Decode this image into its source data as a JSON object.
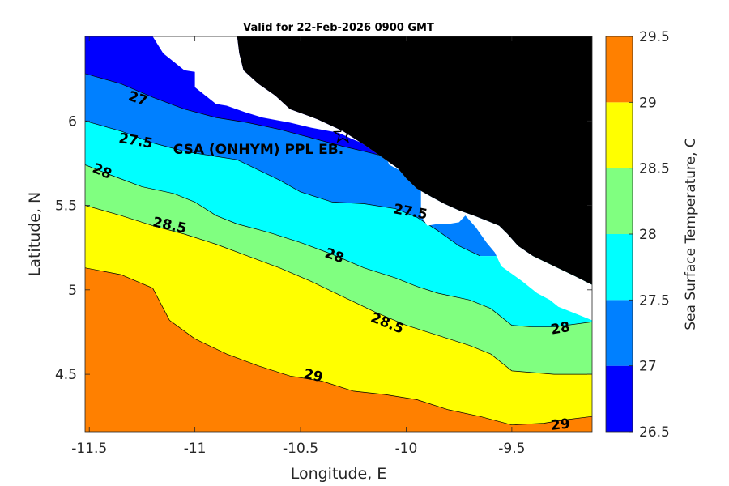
{
  "chart_data": {
    "type": "contourf",
    "title": "Valid for 22-Feb-2026 0900 GMT",
    "xlabel": "Longitude, E",
    "ylabel": "Latitude, N",
    "xlim": [
      -11.52,
      -9.12
    ],
    "ylim": [
      4.16,
      6.5
    ],
    "xticks": [
      -11.5,
      -11,
      -10.5,
      -10,
      -9.5
    ],
    "xtick_labels": [
      "-11.5",
      "-11",
      "-10.5",
      "-10",
      "-9.5"
    ],
    "yticks": [
      4.5,
      5,
      5.5,
      6
    ],
    "ytick_labels": [
      "4.5",
      "5",
      "5.5",
      "6"
    ],
    "colorbar": {
      "label": "Sea Surface Temperature, C",
      "levels": [
        26.5,
        27,
        27.5,
        28,
        28.5,
        29,
        29.5
      ],
      "tick_labels": [
        "26.5",
        "27",
        "27.5",
        "28",
        "28.5",
        "29",
        "29.5"
      ],
      "colors": [
        "#0000ff",
        "#0080ff",
        "#00ffff",
        "#80ff80",
        "#ffff00",
        "#ff8000"
      ]
    },
    "land_color": "#000000",
    "mask_color": "#ffffff",
    "station": {
      "name": "CSA (ONHYM) PPL EB.",
      "lon": -10.3,
      "lat": 5.92
    },
    "contour_labels": [
      {
        "text": "27",
        "lon": -11.27,
        "lat": 6.13,
        "angle": 18
      },
      {
        "text": "27.5",
        "lon": -11.28,
        "lat": 5.88,
        "angle": 10
      },
      {
        "text": "27.5",
        "lon": -9.98,
        "lat": 5.46,
        "angle": 10
      },
      {
        "text": "28",
        "lon": -11.44,
        "lat": 5.7,
        "angle": 24
      },
      {
        "text": "28",
        "lon": -10.34,
        "lat": 5.2,
        "angle": 20
      },
      {
        "text": "28",
        "lon": -9.27,
        "lat": 4.77,
        "angle": -10
      },
      {
        "text": "28.5",
        "lon": -11.12,
        "lat": 5.38,
        "angle": 12
      },
      {
        "text": "28.5",
        "lon": -10.09,
        "lat": 4.8,
        "angle": 22
      },
      {
        "text": "29",
        "lon": -10.44,
        "lat": 4.49,
        "angle": 12
      },
      {
        "text": "29",
        "lon": -9.27,
        "lat": 4.2,
        "angle": -6
      }
    ],
    "contours": {
      "c27_0": [
        [
          -11.52,
          6.28
        ],
        [
          -11.35,
          6.22
        ],
        [
          -11.2,
          6.14
        ],
        [
          -11.05,
          6.07
        ],
        [
          -10.9,
          6.02
        ],
        [
          -10.75,
          5.99
        ],
        [
          -10.6,
          5.95
        ],
        [
          -10.45,
          5.9
        ],
        [
          -10.3,
          5.85
        ],
        [
          -10.2,
          5.82
        ],
        [
          -10.1,
          5.79
        ],
        [
          -10.0,
          5.76
        ],
        [
          -9.95,
          5.74
        ]
      ],
      "c27_5": [
        [
          -11.52,
          6.0
        ],
        [
          -11.35,
          5.94
        ],
        [
          -11.2,
          5.87
        ],
        [
          -11.05,
          5.82
        ],
        [
          -10.9,
          5.79
        ],
        [
          -10.8,
          5.77
        ],
        [
          -10.7,
          5.71
        ],
        [
          -10.6,
          5.65
        ],
        [
          -10.5,
          5.58
        ],
        [
          -10.35,
          5.52
        ],
        [
          -10.2,
          5.51
        ],
        [
          -10.05,
          5.48
        ],
        [
          -9.95,
          5.43
        ],
        [
          -9.85,
          5.35
        ],
        [
          -9.75,
          5.26
        ],
        [
          -9.65,
          5.2
        ]
      ],
      "c28_0": [
        [
          -11.52,
          5.74
        ],
        [
          -11.4,
          5.68
        ],
        [
          -11.25,
          5.61
        ],
        [
          -11.1,
          5.57
        ],
        [
          -11.0,
          5.52
        ],
        [
          -10.9,
          5.44
        ],
        [
          -10.8,
          5.39
        ],
        [
          -10.65,
          5.34
        ],
        [
          -10.5,
          5.28
        ],
        [
          -10.35,
          5.21
        ],
        [
          -10.2,
          5.13
        ],
        [
          -10.05,
          5.07
        ],
        [
          -9.95,
          5.02
        ],
        [
          -9.85,
          4.98
        ],
        [
          -9.7,
          4.94
        ],
        [
          -9.6,
          4.89
        ],
        [
          -9.5,
          4.79
        ],
        [
          -9.4,
          4.78
        ],
        [
          -9.3,
          4.78
        ],
        [
          -9.12,
          4.81
        ]
      ],
      "c28_5": [
        [
          -11.52,
          5.5
        ],
        [
          -11.35,
          5.44
        ],
        [
          -11.2,
          5.38
        ],
        [
          -11.05,
          5.33
        ],
        [
          -10.9,
          5.27
        ],
        [
          -10.75,
          5.2
        ],
        [
          -10.6,
          5.13
        ],
        [
          -10.45,
          5.05
        ],
        [
          -10.3,
          4.96
        ],
        [
          -10.15,
          4.87
        ],
        [
          -10.0,
          4.79
        ],
        [
          -9.85,
          4.73
        ],
        [
          -9.7,
          4.67
        ],
        [
          -9.6,
          4.62
        ],
        [
          -9.5,
          4.52
        ],
        [
          -9.4,
          4.51
        ],
        [
          -9.3,
          4.5
        ],
        [
          -9.12,
          4.5
        ]
      ],
      "c29_0": [
        [
          -11.52,
          5.13
        ],
        [
          -11.35,
          5.09
        ],
        [
          -11.2,
          5.01
        ],
        [
          -11.12,
          4.82
        ],
        [
          -11.0,
          4.71
        ],
        [
          -10.85,
          4.62
        ],
        [
          -10.7,
          4.55
        ],
        [
          -10.55,
          4.49
        ],
        [
          -10.4,
          4.46
        ],
        [
          -10.25,
          4.4
        ],
        [
          -10.1,
          4.38
        ],
        [
          -9.95,
          4.35
        ],
        [
          -9.8,
          4.29
        ],
        [
          -9.65,
          4.25
        ],
        [
          -9.5,
          4.2
        ],
        [
          -9.35,
          4.21
        ],
        [
          -9.25,
          4.23
        ],
        [
          -9.12,
          4.25
        ]
      ]
    },
    "land": [
      [
        -10.8,
        6.5
      ],
      [
        -9.12,
        6.5
      ],
      [
        -9.12,
        5.03
      ],
      [
        -9.2,
        5.08
      ],
      [
        -9.3,
        5.14
      ],
      [
        -9.4,
        5.2
      ],
      [
        -9.47,
        5.26
      ],
      [
        -9.52,
        5.33
      ],
      [
        -9.56,
        5.38
      ],
      [
        -9.62,
        5.41
      ],
      [
        -9.68,
        5.44
      ],
      [
        -9.75,
        5.47
      ],
      [
        -9.82,
        5.51
      ],
      [
        -9.88,
        5.55
      ],
      [
        -9.95,
        5.6
      ],
      [
        -10.0,
        5.66
      ],
      [
        -10.04,
        5.72
      ],
      [
        -10.12,
        5.79
      ],
      [
        -10.2,
        5.86
      ],
      [
        -10.3,
        5.94
      ],
      [
        -10.42,
        6.01
      ],
      [
        -10.55,
        6.07
      ],
      [
        -10.62,
        6.15
      ],
      [
        -10.7,
        6.22
      ],
      [
        -10.77,
        6.3
      ],
      [
        -10.79,
        6.4
      ]
    ],
    "nodata_mask": [
      [
        -11.2,
        6.5
      ],
      [
        -10.8,
        6.5
      ],
      [
        -10.79,
        6.4
      ],
      [
        -10.77,
        6.3
      ],
      [
        -10.7,
        6.22
      ],
      [
        -10.62,
        6.15
      ],
      [
        -10.55,
        6.07
      ],
      [
        -10.42,
        6.01
      ],
      [
        -10.3,
        5.94
      ],
      [
        -10.2,
        5.86
      ],
      [
        -10.12,
        5.79
      ],
      [
        -10.04,
        5.72
      ],
      [
        -10.0,
        5.66
      ],
      [
        -9.95,
        5.6
      ],
      [
        -9.88,
        5.55
      ],
      [
        -9.82,
        5.51
      ],
      [
        -9.75,
        5.47
      ],
      [
        -9.68,
        5.44
      ],
      [
        -9.62,
        5.41
      ],
      [
        -9.56,
        5.38
      ],
      [
        -9.52,
        5.33
      ],
      [
        -9.47,
        5.26
      ],
      [
        -9.4,
        5.2
      ],
      [
        -9.3,
        5.14
      ],
      [
        -9.2,
        5.08
      ],
      [
        -9.12,
        5.03
      ],
      [
        -9.12,
        4.82
      ],
      [
        -9.2,
        4.86
      ],
      [
        -9.28,
        4.9
      ],
      [
        -9.32,
        4.94
      ],
      [
        -9.38,
        4.98
      ],
      [
        -9.45,
        5.05
      ],
      [
        -9.55,
        5.14
      ],
      [
        -9.58,
        5.22
      ],
      [
        -9.62,
        5.28
      ],
      [
        -9.67,
        5.37
      ],
      [
        -9.72,
        5.44
      ],
      [
        -9.75,
        5.4
      ],
      [
        -9.8,
        5.39
      ],
      [
        -9.85,
        5.39
      ],
      [
        -9.9,
        5.38
      ],
      [
        -9.93,
        5.44
      ],
      [
        -9.93,
        5.61
      ],
      [
        -9.97,
        5.65
      ],
      [
        -10.02,
        5.7
      ],
      [
        -10.08,
        5.74
      ],
      [
        -10.1,
        5.8
      ],
      [
        -10.17,
        5.85
      ],
      [
        -10.25,
        5.89
      ],
      [
        -10.32,
        5.93
      ],
      [
        -10.45,
        5.96
      ],
      [
        -10.55,
        5.99
      ],
      [
        -10.68,
        6.02
      ],
      [
        -10.76,
        6.05
      ],
      [
        -10.85,
        6.09
      ],
      [
        -10.9,
        6.1
      ],
      [
        -11.0,
        6.2
      ],
      [
        -11.0,
        6.29
      ],
      [
        -11.05,
        6.3
      ],
      [
        -11.1,
        6.35
      ],
      [
        -11.15,
        6.4
      ]
    ]
  }
}
